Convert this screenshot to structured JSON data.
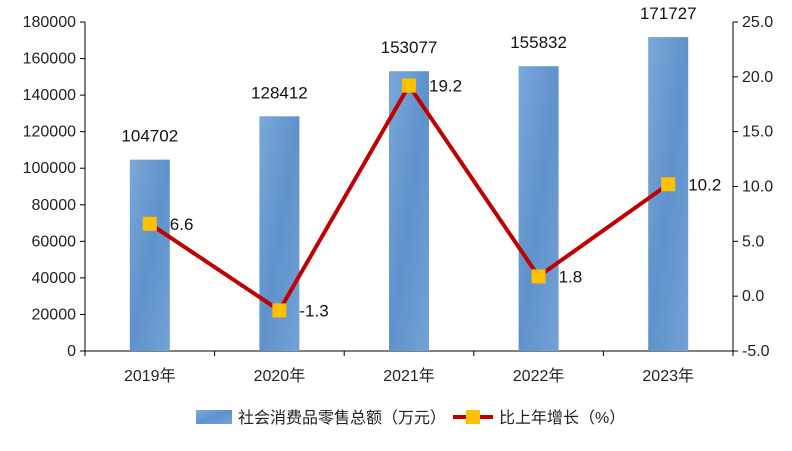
{
  "chart_data": {
    "type": "bar+line",
    "categories": [
      "2019年",
      "2020年",
      "2021年",
      "2022年",
      "2023年"
    ],
    "series": [
      {
        "name": "社会消费品零售总额（万元）",
        "type": "bar",
        "axis": "left",
        "values": [
          104702,
          128412,
          153077,
          155832,
          171727
        ],
        "color": "#6a9bd1"
      },
      {
        "name": "比上年增长（%）",
        "type": "line",
        "axis": "right",
        "values": [
          6.6,
          -1.3,
          19.2,
          1.8,
          10.2
        ],
        "line_color": "#c00000",
        "marker_color": "#ffc000"
      }
    ],
    "y_left": {
      "lim": [
        0,
        180000
      ],
      "ticks": [
        "0",
        "20000",
        "40000",
        "60000",
        "80000",
        "100000",
        "120000",
        "140000",
        "160000",
        "180000"
      ]
    },
    "y_right": {
      "lim": [
        -5,
        25
      ],
      "ticks": [
        "-5.0",
        "0.0",
        "5.0",
        "10.0",
        "15.0",
        "20.0",
        "25.0"
      ]
    },
    "bar_labels": [
      "104702",
      "128412",
      "153077",
      "155832",
      "171727"
    ],
    "line_labels": [
      "6.6",
      "-1.3",
      "19.2",
      "1.8",
      "10.2"
    ],
    "legend": [
      "社会消费品零售总额（万元）",
      "比上年增长（%）"
    ],
    "legend_position": "bottom",
    "grid": false
  }
}
